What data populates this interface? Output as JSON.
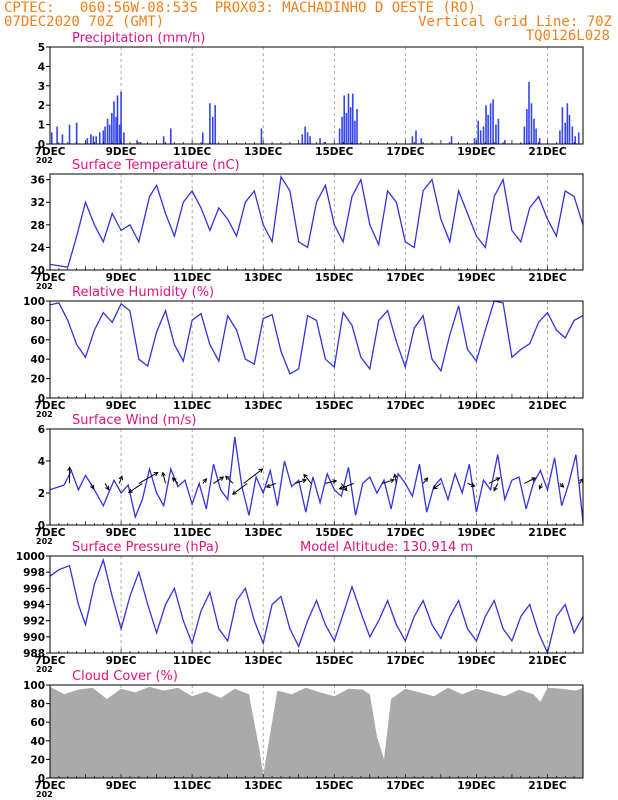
{
  "header": {
    "line1_left": "CPTEC:",
    "line1_coords": "060:56W-08:53S",
    "line1_station": "PROX03: MACHADINHO D OESTE (RO)",
    "line2_left": "07DEC2020 70Z (GMT)",
    "line2_right": "Vertical Grid Line: 70Z",
    "line3_right": "TQ0126L028"
  },
  "colors": {
    "header": "#f07f1c",
    "title": "#e0137f",
    "line": "#3333dd",
    "bars": "#3344ee",
    "cloud": "#aaaaaa"
  },
  "x_ticks": [
    "7DEC",
    "9DEC",
    "11DEC",
    "13DEC",
    "15DEC",
    "17DEC",
    "19DEC",
    "21DEC"
  ],
  "year_fragment": "202",
  "chart_data": [
    {
      "type": "bar",
      "title": "Precipitation (mm/h)",
      "ylim": [
        0,
        5
      ],
      "yticks": [
        0,
        1,
        2,
        3,
        4,
        5
      ],
      "x_range_days": [
        0,
        15
      ],
      "events": [
        {
          "day": 0.05,
          "v": 0.6
        },
        {
          "day": 0.2,
          "v": 0.9
        },
        {
          "day": 0.35,
          "v": 0.5
        },
        {
          "day": 0.55,
          "v": 1.0
        },
        {
          "day": 0.75,
          "v": 1.1
        },
        {
          "day": 1.05,
          "v": 0.3
        },
        {
          "day": 1.15,
          "v": 0.5
        },
        {
          "day": 1.22,
          "v": 0.4
        },
        {
          "day": 1.3,
          "v": 0.4
        },
        {
          "day": 1.4,
          "v": 0.6
        },
        {
          "day": 1.5,
          "v": 0.7
        },
        {
          "day": 1.55,
          "v": 0.9
        },
        {
          "day": 1.62,
          "v": 1.3
        },
        {
          "day": 1.68,
          "v": 1.0
        },
        {
          "day": 1.74,
          "v": 1.6
        },
        {
          "day": 1.8,
          "v": 2.2
        },
        {
          "day": 1.86,
          "v": 1.4
        },
        {
          "day": 1.9,
          "v": 2.5
        },
        {
          "day": 1.96,
          "v": 1.0
        },
        {
          "day": 2.0,
          "v": 2.7
        },
        {
          "day": 2.08,
          "v": 0.6
        },
        {
          "day": 2.45,
          "v": 0.2
        },
        {
          "day": 2.55,
          "v": 0.1
        },
        {
          "day": 3.2,
          "v": 0.4
        },
        {
          "day": 3.4,
          "v": 0.8
        },
        {
          "day": 4.3,
          "v": 0.6
        },
        {
          "day": 4.5,
          "v": 2.1
        },
        {
          "day": 4.58,
          "v": 1.4
        },
        {
          "day": 4.65,
          "v": 2.0
        },
        {
          "day": 5.95,
          "v": 0.8
        },
        {
          "day": 7.1,
          "v": 0.5
        },
        {
          "day": 7.18,
          "v": 0.9
        },
        {
          "day": 7.25,
          "v": 0.6
        },
        {
          "day": 7.32,
          "v": 0.4
        },
        {
          "day": 7.6,
          "v": 0.3
        },
        {
          "day": 7.72,
          "v": 0.1
        },
        {
          "day": 8.15,
          "v": 0.8
        },
        {
          "day": 8.22,
          "v": 1.4
        },
        {
          "day": 8.28,
          "v": 2.5
        },
        {
          "day": 8.34,
          "v": 1.6
        },
        {
          "day": 8.4,
          "v": 2.6
        },
        {
          "day": 8.46,
          "v": 1.9
        },
        {
          "day": 8.52,
          "v": 2.6
        },
        {
          "day": 8.58,
          "v": 1.2
        },
        {
          "day": 8.64,
          "v": 1.8
        },
        {
          "day": 10.2,
          "v": 0.4
        },
        {
          "day": 10.3,
          "v": 0.7
        },
        {
          "day": 10.45,
          "v": 0.3
        },
        {
          "day": 11.3,
          "v": 0.4
        },
        {
          "day": 11.95,
          "v": 0.3
        },
        {
          "day": 12.05,
          "v": 1.2
        },
        {
          "day": 12.12,
          "v": 0.7
        },
        {
          "day": 12.2,
          "v": 0.9
        },
        {
          "day": 12.27,
          "v": 2.0
        },
        {
          "day": 12.33,
          "v": 1.5
        },
        {
          "day": 12.4,
          "v": 2.1
        },
        {
          "day": 12.47,
          "v": 2.3
        },
        {
          "day": 12.55,
          "v": 1.0
        },
        {
          "day": 12.62,
          "v": 1.3
        },
        {
          "day": 12.8,
          "v": 0.2
        },
        {
          "day": 13.35,
          "v": 0.9
        },
        {
          "day": 13.42,
          "v": 1.8
        },
        {
          "day": 13.48,
          "v": 3.2
        },
        {
          "day": 13.55,
          "v": 2.1
        },
        {
          "day": 13.62,
          "v": 1.3
        },
        {
          "day": 13.68,
          "v": 0.8
        },
        {
          "day": 13.78,
          "v": 0.3
        },
        {
          "day": 14.35,
          "v": 0.7
        },
        {
          "day": 14.42,
          "v": 1.9
        },
        {
          "day": 14.5,
          "v": 1.1
        },
        {
          "day": 14.56,
          "v": 2.1
        },
        {
          "day": 14.62,
          "v": 1.5
        },
        {
          "day": 14.7,
          "v": 0.9
        },
        {
          "day": 14.78,
          "v": 0.4
        },
        {
          "day": 14.88,
          "v": 0.6
        }
      ]
    },
    {
      "type": "line",
      "title": "Surface Temperature (nC)",
      "ylim": [
        20,
        37
      ],
      "yticks": [
        20,
        24,
        28,
        32,
        36
      ],
      "x": [
        0,
        0.5,
        0.75,
        1,
        1.25,
        1.5,
        1.75,
        2,
        2.25,
        2.5,
        2.8,
        3,
        3.25,
        3.5,
        3.75,
        4,
        4.25,
        4.5,
        4.75,
        5,
        5.25,
        5.5,
        5.75,
        6,
        6.25,
        6.5,
        6.75,
        7,
        7.25,
        7.5,
        7.75,
        8,
        8.25,
        8.5,
        8.75,
        9,
        9.25,
        9.5,
        9.75,
        10,
        10.25,
        10.5,
        10.75,
        11,
        11.25,
        11.5,
        11.75,
        12,
        12.25,
        12.5,
        12.75,
        13,
        13.25,
        13.5,
        13.75,
        14,
        14.25,
        14.5,
        14.75,
        15
      ],
      "y": [
        21,
        20.5,
        26,
        32,
        28,
        25,
        30,
        27,
        28,
        25,
        33,
        35,
        30,
        26,
        32,
        34,
        31,
        27,
        31,
        29,
        26,
        32,
        34,
        28,
        25,
        36.5,
        34,
        25,
        24,
        32,
        35,
        28,
        25,
        33,
        36,
        28,
        24.5,
        34,
        32,
        25,
        24,
        34,
        36,
        29,
        25,
        34,
        30,
        26,
        24,
        33,
        36,
        27,
        25,
        31,
        33,
        29,
        26,
        34,
        33,
        28
      ]
    },
    {
      "type": "line",
      "title": "Relative Humidity (%)",
      "ylim": [
        0,
        100
      ],
      "yticks": [
        0,
        20,
        40,
        60,
        80,
        100
      ],
      "x": [
        0,
        0.25,
        0.5,
        0.75,
        1,
        1.25,
        1.5,
        1.75,
        2,
        2.25,
        2.5,
        2.75,
        3,
        3.25,
        3.5,
        3.75,
        4,
        4.25,
        4.5,
        4.75,
        5,
        5.25,
        5.5,
        5.75,
        6,
        6.25,
        6.5,
        6.75,
        7,
        7.25,
        7.5,
        7.75,
        8,
        8.25,
        8.5,
        8.75,
        9,
        9.25,
        9.5,
        9.75,
        10,
        10.25,
        10.5,
        10.75,
        11,
        11.25,
        11.5,
        11.75,
        12,
        12.25,
        12.5,
        12.75,
        13,
        13.25,
        13.5,
        13.75,
        14,
        14.25,
        14.5,
        14.75,
        15
      ],
      "y": [
        96,
        98,
        80,
        55,
        42,
        70,
        88,
        78,
        97,
        90,
        40,
        33,
        68,
        90,
        55,
        38,
        80,
        87,
        55,
        38,
        85,
        70,
        40,
        35,
        82,
        86,
        48,
        25,
        30,
        85,
        80,
        40,
        32,
        88,
        75,
        42,
        30,
        80,
        90,
        58,
        32,
        72,
        85,
        40,
        28,
        65,
        95,
        50,
        38,
        70,
        100,
        98,
        42,
        50,
        56,
        78,
        88,
        70,
        62,
        80,
        85
      ]
    },
    {
      "type": "line",
      "title": "Surface Wind (m/s)",
      "ylim": [
        0,
        6
      ],
      "yticks": [
        0,
        2,
        4,
        6
      ],
      "x": [
        0,
        0.4,
        0.6,
        0.8,
        1,
        1.2,
        1.5,
        1.8,
        2,
        2.2,
        2.4,
        2.6,
        2.8,
        3,
        3.2,
        3.4,
        3.6,
        3.8,
        4,
        4.2,
        4.4,
        4.6,
        4.8,
        5,
        5.2,
        5.4,
        5.6,
        5.8,
        6,
        6.2,
        6.4,
        6.6,
        6.8,
        7,
        7.2,
        7.4,
        7.6,
        7.8,
        8,
        8.2,
        8.4,
        8.6,
        8.8,
        9,
        9.2,
        9.4,
        9.6,
        9.8,
        10,
        10.2,
        10.4,
        10.6,
        10.8,
        11,
        11.2,
        11.4,
        11.6,
        11.8,
        12,
        12.2,
        12.4,
        12.6,
        12.8,
        13,
        13.2,
        13.4,
        13.6,
        13.8,
        14,
        14.2,
        14.4,
        14.6,
        14.8,
        15
      ],
      "y": [
        2.2,
        2.5,
        3.4,
        2.2,
        3.1,
        2.4,
        1.2,
        2.8,
        2.0,
        2.5,
        0.5,
        1.6,
        3.5,
        2.0,
        1.2,
        3.5,
        2.4,
        2.8,
        1.3,
        2.6,
        1.0,
        3.8,
        2.2,
        1.6,
        5.5,
        2.4,
        0.6,
        3.0,
        2.0,
        3.4,
        1.2,
        4.0,
        2.4,
        2.8,
        0.8,
        3.0,
        1.4,
        3.2,
        2.2,
        1.8,
        3.6,
        0.6,
        2.6,
        3.0,
        2.0,
        2.8,
        1.0,
        3.2,
        2.6,
        1.8,
        3.8,
        0.8,
        2.4,
        2.9,
        1.6,
        3.2,
        2.0,
        3.8,
        0.8,
        2.8,
        2.2,
        4.4,
        1.6,
        2.8,
        3.0,
        1.0,
        2.6,
        3.4,
        2.2,
        4.2,
        1.2,
        2.6,
        4.4,
        0.2
      ],
      "arrows": [
        {
          "day": 0.55,
          "u": 0,
          "v": 1.8
        },
        {
          "day": 1.15,
          "u": 0.3,
          "v": -0.6
        },
        {
          "day": 1.55,
          "u": 0.4,
          "v": -0.7
        },
        {
          "day": 1.95,
          "u": 0.3,
          "v": 0.8
        },
        {
          "day": 2.5,
          "u": 2.1,
          "v": 1.2
        },
        {
          "day": 2.6,
          "u": -1.5,
          "v": -1.0
        },
        {
          "day": 3.25,
          "u": -0.3,
          "v": 1.2
        },
        {
          "day": 3.6,
          "u": -0.6,
          "v": 0.6
        },
        {
          "day": 4.3,
          "u": 0.4,
          "v": 0.5
        },
        {
          "day": 4.6,
          "u": 1.1,
          "v": 0.7
        },
        {
          "day": 5.15,
          "u": -0.8,
          "v": 0.8
        },
        {
          "day": 5.45,
          "u": 2.1,
          "v": 1.6
        },
        {
          "day": 5.55,
          "u": -1.6,
          "v": -1.2
        },
        {
          "day": 6.35,
          "u": -1.0,
          "v": -0.4
        },
        {
          "day": 6.9,
          "u": 1.2,
          "v": 0.4
        },
        {
          "day": 7.35,
          "u": -0.8,
          "v": 1.0
        },
        {
          "day": 7.75,
          "u": 1.2,
          "v": 0.3
        },
        {
          "day": 8.2,
          "u": 0.6,
          "v": -0.8
        },
        {
          "day": 8.55,
          "u": -1.6,
          "v": -0.6
        },
        {
          "day": 9.35,
          "u": 1.3,
          "v": 0.4
        },
        {
          "day": 9.75,
          "u": -0.2,
          "v": 1.0
        },
        {
          "day": 10.5,
          "u": 0.5,
          "v": 0.6
        },
        {
          "day": 11.0,
          "u": -0.8,
          "v": -0.6
        },
        {
          "day": 11.75,
          "u": 0.8,
          "v": -0.3
        },
        {
          "day": 12.35,
          "u": 1.2,
          "v": 0.6
        },
        {
          "day": 12.6,
          "u": -0.4,
          "v": -0.8
        },
        {
          "day": 13.35,
          "u": 1.2,
          "v": 0.6
        },
        {
          "day": 13.85,
          "u": -0.3,
          "v": -0.6
        },
        {
          "day": 14.35,
          "u": 0.4,
          "v": -0.4
        },
        {
          "day": 14.9,
          "u": 0.4,
          "v": 0.5
        }
      ]
    },
    {
      "type": "line",
      "title": "Surface Pressure (hPa)",
      "model_altitude": "Model Altitude: 130.914 m",
      "ylim": [
        988,
        1000
      ],
      "yticks": [
        988,
        990,
        992,
        994,
        996,
        998,
        1000
      ],
      "x": [
        0,
        0.25,
        0.55,
        0.8,
        1,
        1.25,
        1.5,
        1.75,
        2,
        2.25,
        2.5,
        2.75,
        3,
        3.25,
        3.5,
        3.75,
        4,
        4.25,
        4.5,
        4.75,
        5,
        5.25,
        5.5,
        5.75,
        6,
        6.25,
        6.5,
        6.75,
        7,
        7.25,
        7.5,
        7.75,
        8,
        8.25,
        8.5,
        8.75,
        9,
        9.25,
        9.5,
        9.75,
        10,
        10.25,
        10.5,
        10.75,
        11,
        11.25,
        11.5,
        11.75,
        12,
        12.25,
        12.5,
        12.75,
        13,
        13.25,
        13.5,
        13.75,
        14,
        14.25,
        14.5,
        14.75,
        15
      ],
      "y": [
        997.5,
        998.3,
        998.8,
        994,
        991.5,
        996.5,
        999.5,
        995,
        991,
        995,
        998,
        994,
        990.5,
        994,
        996,
        992,
        989.2,
        993.2,
        995.5,
        991,
        989.5,
        994.5,
        996,
        992,
        989.2,
        994,
        995,
        991,
        988.8,
        992,
        994.5,
        991.5,
        989.5,
        992.8,
        996.2,
        993,
        990,
        992,
        994.5,
        991.5,
        989.5,
        992.5,
        994.5,
        991.5,
        989.8,
        992.5,
        994.5,
        991,
        989.5,
        992.5,
        994.5,
        991,
        989.5,
        992.5,
        994,
        990.5,
        988,
        992.5,
        994,
        990.5,
        992.5
      ]
    },
    {
      "type": "area",
      "title": "Cloud Cover (%)",
      "ylim": [
        0,
        100
      ],
      "yticks": [
        0,
        20,
        40,
        60,
        80,
        100
      ],
      "x": [
        0,
        0.4,
        0.8,
        1.2,
        1.6,
        2.0,
        2.4,
        2.8,
        3.2,
        3.6,
        4.0,
        4.4,
        4.8,
        5.2,
        5.6,
        5.9,
        6.0,
        6.4,
        6.8,
        7.2,
        7.6,
        8.0,
        8.4,
        8.8,
        9.0,
        9.2,
        9.4,
        9.6,
        10.0,
        10.4,
        10.8,
        11.2,
        11.6,
        12.0,
        12.4,
        12.8,
        13.2,
        13.6,
        13.8,
        14.0,
        14.4,
        14.8,
        15
      ],
      "y": [
        98,
        90,
        95,
        97,
        85,
        96,
        92,
        98,
        94,
        97,
        88,
        93,
        86,
        96,
        90,
        30,
        3,
        94,
        90,
        97,
        92,
        88,
        96,
        95,
        90,
        45,
        20,
        85,
        96,
        92,
        88,
        97,
        90,
        96,
        92,
        88,
        95,
        90,
        82,
        97,
        96,
        94,
        97
      ]
    }
  ]
}
